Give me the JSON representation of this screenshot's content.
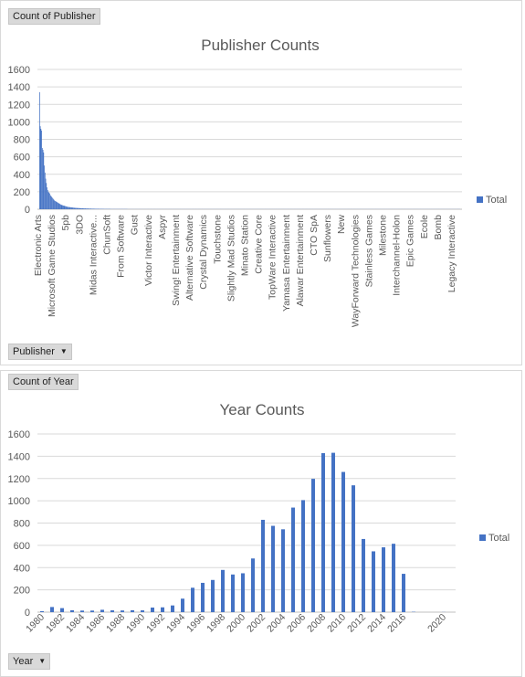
{
  "charts": [
    {
      "value_field_label": "Count of Publisher",
      "axis_field_label": "Publisher",
      "title": "Publisher Counts",
      "legend_label": "Total"
    },
    {
      "value_field_label": "Count of Year",
      "axis_field_label": "Year",
      "title": "Year Counts",
      "legend_label": "Total"
    }
  ],
  "icons": {
    "dropdown": "dropdown-arrow-icon"
  },
  "colors": {
    "bar": "#4472c4",
    "grid": "#d9d9d9",
    "text": "#595959",
    "title": "#595959",
    "field_button": "#d9d9d9"
  },
  "chart_data": [
    {
      "type": "bar",
      "title": "Publisher Counts",
      "xlabel": "",
      "ylabel": "",
      "ylim": [
        0,
        1600
      ],
      "yticks": [
        0,
        200,
        400,
        600,
        800,
        1000,
        1200,
        1400,
        1600
      ],
      "legend": "right",
      "grid": true,
      "series": [
        {
          "name": "Total",
          "values": [
            1340,
            950,
            920,
            900,
            700,
            680,
            650,
            500,
            420,
            350,
            300,
            250,
            220,
            200,
            190,
            180,
            160,
            150,
            140,
            130,
            120,
            110,
            100,
            95,
            90,
            85,
            80,
            75,
            70,
            65,
            60,
            55,
            50,
            48,
            45,
            42,
            40,
            38,
            35,
            33,
            30,
            28,
            26,
            25,
            24,
            23,
            22,
            21,
            20,
            19,
            18,
            17,
            16,
            15,
            15,
            14,
            14,
            13,
            13,
            12,
            12,
            11,
            11,
            10,
            10,
            10,
            9,
            9,
            9,
            8,
            8,
            8,
            8,
            7,
            7,
            7,
            7,
            6,
            6,
            6,
            6,
            6,
            5,
            5,
            5,
            5,
            5,
            5,
            4,
            4,
            4,
            4,
            4,
            4,
            4,
            3,
            3,
            3,
            3,
            3,
            3,
            3,
            3,
            3,
            3,
            2,
            2,
            2,
            2,
            2,
            2,
            2,
            2,
            2,
            2,
            2,
            2,
            2,
            2,
            2,
            2,
            2,
            2,
            2,
            2,
            2,
            2,
            2,
            2,
            2,
            1,
            1,
            1,
            1,
            1,
            1,
            1,
            1,
            1,
            1,
            1,
            1,
            1,
            1,
            1,
            1,
            1,
            1,
            1,
            1,
            1,
            1,
            1,
            1,
            1,
            1,
            1,
            1,
            1,
            1,
            1,
            1,
            1,
            1,
            1,
            1,
            1,
            1,
            1,
            1,
            1,
            1,
            1,
            1,
            1,
            1,
            1,
            1,
            1,
            1,
            1,
            1,
            1,
            1,
            1,
            1,
            1,
            1,
            1,
            1,
            1,
            1,
            1,
            1,
            1,
            1,
            1,
            1,
            1,
            1,
            1,
            1,
            1,
            1,
            1,
            1,
            1,
            1,
            1,
            1,
            1,
            1,
            1,
            1,
            1,
            1,
            1,
            1,
            1,
            1,
            1,
            1,
            1,
            1,
            1,
            1,
            1,
            1,
            1,
            1,
            1,
            1,
            1,
            1,
            1,
            1,
            1,
            1,
            1,
            1,
            1,
            1,
            1,
            1,
            1,
            1,
            1,
            1,
            1,
            1,
            1,
            1,
            1,
            1,
            1,
            1,
            1,
            1,
            1,
            1,
            1,
            1,
            1,
            1,
            1,
            1,
            1,
            1,
            1,
            1,
            1,
            1,
            1,
            1,
            1,
            1,
            1,
            1,
            1,
            1,
            1,
            1,
            1,
            1,
            1,
            1,
            1,
            1,
            1,
            1,
            1,
            1,
            1,
            1,
            1,
            1,
            1,
            1,
            1,
            1,
            1,
            1,
            1,
            1,
            1,
            1,
            1,
            1,
            1,
            1,
            1,
            1,
            1,
            1,
            1,
            1,
            1,
            1,
            1,
            1,
            1,
            1,
            1,
            1,
            1,
            1,
            1,
            1,
            1,
            1,
            1,
            1,
            1,
            1,
            1,
            1,
            1,
            1,
            1,
            1,
            1,
            1,
            1,
            1,
            1,
            1,
            1,
            1,
            1,
            1,
            1,
            1,
            1,
            1,
            1,
            1,
            1,
            1,
            1,
            1,
            1,
            1,
            1,
            1,
            1,
            1,
            1,
            1,
            1,
            1,
            1,
            1,
            1,
            1,
            1,
            1,
            1,
            1,
            1,
            1,
            1,
            1,
            1,
            1,
            1,
            1,
            1,
            1,
            1,
            1,
            1,
            1,
            1,
            1,
            1,
            1,
            1,
            1,
            1,
            1,
            1,
            1,
            1,
            1,
            1,
            1,
            1,
            1,
            1,
            1,
            1,
            1,
            1,
            1,
            1,
            1,
            1,
            1,
            1,
            1,
            1,
            1,
            1,
            1,
            1,
            1,
            1,
            1,
            1,
            1,
            1,
            1,
            1,
            1,
            1,
            1,
            1,
            1,
            1,
            1,
            1,
            1,
            1,
            1,
            1,
            1,
            1,
            1,
            1,
            1,
            1,
            1,
            1,
            1,
            1,
            1,
            1,
            1,
            1,
            1,
            1,
            1,
            1,
            1,
            1,
            1,
            1,
            1,
            1,
            1,
            1,
            1,
            1,
            1,
            1,
            1,
            1,
            1,
            1,
            1,
            1,
            1,
            1,
            1,
            1,
            1,
            1,
            1,
            1,
            1,
            1,
            1,
            1,
            1,
            1,
            1,
            1,
            1,
            1,
            1,
            1,
            1,
            1,
            1,
            1,
            1,
            1,
            1,
            1,
            1,
            1,
            1,
            1,
            1,
            1,
            1,
            1,
            1,
            1,
            1,
            1,
            1,
            1,
            1,
            1,
            1,
            1,
            1,
            1,
            1,
            1,
            1,
            1,
            1,
            1,
            1,
            1,
            1,
            1,
            1,
            1,
            1,
            1,
            1,
            1,
            1,
            1,
            1,
            1,
            1,
            1,
            1,
            1,
            1,
            1,
            1,
            1,
            1,
            1,
            1,
            1,
            1,
            1,
            1,
            1,
            1,
            1,
            1,
            1,
            1,
            1,
            1,
            1,
            1,
            1,
            1,
            1,
            1,
            1,
            1,
            1,
            1,
            1,
            1,
            1,
            1,
            1,
            1,
            1,
            1,
            1,
            1,
            1,
            1,
            1,
            1,
            1,
            1,
            1,
            1,
            1,
            1,
            1,
            1,
            1,
            1,
            1,
            1,
            1,
            1,
            1,
            1,
            1,
            1,
            1,
            1,
            1,
            1,
            1,
            1,
            1
          ]
        }
      ],
      "visible_category_labels": [
        "Electronic Arts",
        "Microsoft Game Studios",
        "5pb",
        "3DO",
        "Midas Interactive...",
        "ChunSoft",
        "From Software",
        "Gust",
        "Victor Interactive",
        "Aspyr",
        "Swing! Entertainment",
        "Alternative Software",
        "Crystal Dynamics",
        "Touchstone",
        "Slightly Mad Studios",
        "Minato Station",
        "Creative Core",
        "TopWare Interactive",
        "Yamasa Entertainment",
        "Alawar Entertainment",
        "CTO SpA",
        "Sunflowers",
        "New",
        "WayForward Technologies",
        "Stainless Games",
        "Milestone",
        "Interchannel-Holon",
        "Epic Games",
        "Ecole",
        "Bomb",
        "Legacy Interactive"
      ]
    },
    {
      "type": "bar",
      "title": "Year Counts",
      "xlabel": "",
      "ylabel": "",
      "ylim": [
        0,
        1600
      ],
      "yticks": [
        0,
        200,
        400,
        600,
        800,
        1000,
        1200,
        1400,
        1600
      ],
      "legend": "right",
      "grid": true,
      "categories": [
        1980,
        1981,
        1982,
        1983,
        1984,
        1985,
        1986,
        1987,
        1988,
        1989,
        1990,
        1991,
        1992,
        1993,
        1994,
        1995,
        1996,
        1997,
        1998,
        1999,
        2000,
        2001,
        2002,
        2003,
        2004,
        2005,
        2006,
        2007,
        2008,
        2009,
        2010,
        2011,
        2012,
        2013,
        2014,
        2015,
        2016,
        2017,
        2020
      ],
      "x_tick_labels": [
        "1980",
        "1982",
        "1984",
        "1986",
        "1988",
        "1990",
        "1992",
        "1994",
        "1996",
        "1998",
        "2000",
        "2002",
        "2004",
        "2006",
        "2008",
        "2010",
        "2012",
        "2014",
        "2016",
        "2020"
      ],
      "series": [
        {
          "name": "Total",
          "values": [
            9,
            46,
            36,
            17,
            14,
            14,
            21,
            16,
            15,
            17,
            16,
            41,
            43,
            60,
            121,
            219,
            263,
            289,
            379,
            338,
            349,
            482,
            829,
            775,
            744,
            939,
            1006,
            1197,
            1428,
            1431,
            1259,
            1139,
            657,
            546,
            582,
            614,
            344,
            3,
            1
          ]
        }
      ]
    }
  ]
}
